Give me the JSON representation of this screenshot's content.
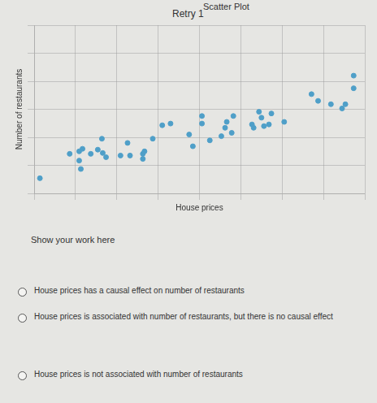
{
  "header": "Scatter Plot",
  "retry": "Retry 1",
  "prompt": "Show your work here",
  "options": [
    "House prices has a causal effect on number of restaurants",
    "House prices is associated with number of restaurants, but there is no causal effect",
    "House prices is not associated with number of restaurants"
  ],
  "chart_data": {
    "type": "scatter",
    "x_label": "House prices",
    "y_label": "Number of restaurants",
    "x": [
      0.14,
      0.86,
      1.09,
      1.17,
      1.09,
      1.13,
      1.37,
      1.54,
      1.66,
      1.74,
      1.64,
      2.09,
      2.32,
      2.26,
      2.63,
      2.63,
      2.67,
      2.87,
      3.1,
      3.3,
      3.75,
      3.84,
      4.06,
      4.06,
      4.25,
      4.53,
      4.62,
      4.66,
      4.78,
      4.82,
      5.27,
      5.31,
      5.44,
      5.5,
      5.56,
      5.68,
      5.74,
      6.05,
      6.71,
      6.87,
      7.18,
      7.45,
      7.53,
      7.73,
      7.73
    ],
    "values": [
      0.54,
      1.41,
      1.5,
      1.59,
      1.17,
      0.87,
      1.41,
      1.56,
      1.44,
      1.29,
      1.95,
      1.35,
      1.35,
      1.8,
      1.41,
      1.23,
      1.5,
      1.95,
      2.43,
      2.49,
      2.1,
      1.68,
      2.76,
      2.49,
      1.89,
      2.04,
      2.34,
      2.55,
      2.16,
      2.76,
      2.46,
      2.34,
      2.91,
      2.7,
      2.4,
      2.46,
      2.85,
      2.55,
      3.54,
      3.3,
      3.18,
      3.03,
      3.18,
      4.2,
      3.75
    ],
    "color": "#4f9fc8",
    "xlim": [
      0,
      8
    ],
    "xticks": [
      0,
      1,
      2,
      3,
      4,
      5,
      6,
      7,
      8
    ],
    "ylim": [
      0,
      6
    ],
    "yticks": [
      0,
      1,
      2,
      3,
      4,
      5,
      6
    ],
    "grid": true,
    "tick_labels": false
  }
}
